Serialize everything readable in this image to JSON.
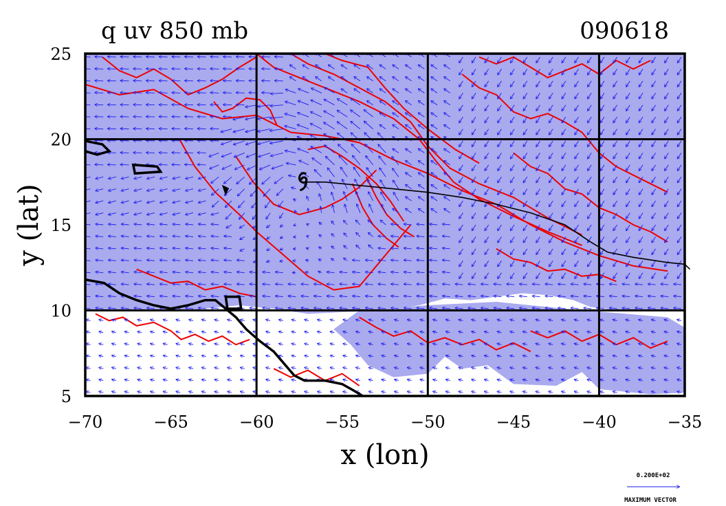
{
  "chart_data": {
    "type": "contour+vector",
    "title_left": "q uv 850 mb",
    "title_right": "090618",
    "xlabel": "x (lon)",
    "ylabel": "y (lat)",
    "xlim": [
      -70,
      -35
    ],
    "ylim": [
      5,
      25
    ],
    "xticks": [
      -70,
      -65,
      -60,
      -55,
      -50,
      -45,
      -40,
      -35
    ],
    "yticks": [
      5,
      10,
      15,
      20,
      25
    ],
    "xtick_labels": [
      "−70",
      "−65",
      "−60",
      "−55",
      "−50",
      "−45",
      "−40",
      "−35"
    ],
    "ytick_labels": [
      "5",
      "10",
      "15",
      "20",
      "25"
    ],
    "grid_x": [
      -60,
      -50,
      -40
    ],
    "grid_y": [
      10,
      20
    ],
    "colors": {
      "shade": "#aaaaee",
      "contour": "#ee0000",
      "vector": "#1a1aee",
      "coast": "#000000"
    },
    "shaded_regions": [
      {
        "name": "north-east-moist-band",
        "points": [
          [
            -70,
            25
          ],
          [
            -35,
            25
          ],
          [
            -35,
            10
          ],
          [
            -39,
            10
          ],
          [
            -40.5,
            10.2
          ],
          [
            -41.5,
            10.6
          ],
          [
            -43,
            10.9
          ],
          [
            -44.5,
            11.0
          ],
          [
            -46,
            10.8
          ],
          [
            -47.5,
            10.6
          ],
          [
            -49,
            10.7
          ],
          [
            -50,
            11.2
          ],
          [
            -51,
            11.7
          ],
          [
            -52,
            12.3
          ],
          [
            -53,
            13.2
          ],
          [
            -54,
            14.2
          ],
          [
            -55,
            15.3
          ],
          [
            -56,
            16.0
          ],
          [
            -57,
            16.3
          ],
          [
            -58,
            16.1
          ],
          [
            -59,
            15.7
          ],
          [
            -60,
            15.6
          ],
          [
            -61,
            16.4
          ],
          [
            -62.5,
            17.8
          ],
          [
            -63.3,
            19.2
          ],
          [
            -63.5,
            20.2
          ],
          [
            -64,
            20.6
          ],
          [
            -66,
            20.5
          ],
          [
            -70,
            20.4
          ]
        ]
      },
      {
        "name": "west-moist-band",
        "points": [
          [
            -70,
            20.4
          ],
          [
            -66,
            20.5
          ],
          [
            -64,
            20.6
          ],
          [
            -63.5,
            20.2
          ],
          [
            -63.3,
            19.2
          ],
          [
            -62.5,
            17.8
          ],
          [
            -61,
            16.4
          ],
          [
            -60,
            15.6
          ],
          [
            -59,
            15.7
          ],
          [
            -58,
            16.1
          ],
          [
            -57,
            16.3
          ],
          [
            -56,
            16.0
          ],
          [
            -55,
            15.3
          ],
          [
            -54,
            14.2
          ],
          [
            -53,
            13.2
          ],
          [
            -52,
            12.3
          ],
          [
            -51,
            11.7
          ],
          [
            -50,
            11.2
          ],
          [
            -49,
            10.7
          ],
          [
            -50.5,
            10.3
          ],
          [
            -52.5,
            10.0
          ],
          [
            -55,
            9.9
          ],
          [
            -57,
            9.8
          ],
          [
            -59,
            10.1
          ],
          [
            -61,
            10.3
          ],
          [
            -64,
            10.0
          ],
          [
            -67,
            10.0
          ],
          [
            -70,
            10.0
          ]
        ]
      },
      {
        "name": "south-east-moist-patch",
        "points": [
          [
            -54,
            10
          ],
          [
            -50,
            10.3
          ],
          [
            -46,
            10.5
          ],
          [
            -42,
            10.1
          ],
          [
            -36,
            9.6
          ],
          [
            -35,
            9.0
          ],
          [
            -35,
            5.2
          ],
          [
            -37,
            5.1
          ],
          [
            -40,
            5.4
          ],
          [
            -41,
            6.4
          ],
          [
            -42.5,
            5.6
          ],
          [
            -45,
            5.7
          ],
          [
            -46.5,
            6.8
          ],
          [
            -48,
            6.6
          ],
          [
            -49,
            7.3
          ],
          [
            -50,
            6.3
          ],
          [
            -52,
            6.1
          ],
          [
            -53.5,
            6.8
          ],
          [
            -54.5,
            8.0
          ],
          [
            -55.5,
            8.9
          ]
        ]
      }
    ],
    "contour_lines": [
      [
        [
          -69,
          24.8
        ],
        [
          -68,
          24.0
        ],
        [
          -67,
          23.6
        ],
        [
          -66,
          24.1
        ],
        [
          -65,
          23.5
        ],
        [
          -64,
          22.6
        ],
        [
          -63,
          23.0
        ],
        [
          -62,
          23.5
        ],
        [
          -61,
          24.2
        ],
        [
          -60,
          24.8
        ]
      ],
      [
        [
          -70,
          23.2
        ],
        [
          -68,
          22.6
        ],
        [
          -66,
          22.9
        ],
        [
          -64,
          21.8
        ],
        [
          -62,
          21.2
        ],
        [
          -60,
          21.4
        ],
        [
          -58,
          20.4
        ],
        [
          -56,
          20.2
        ],
        [
          -54,
          19.8
        ],
        [
          -52,
          18.8
        ],
        [
          -50,
          18.0
        ],
        [
          -48,
          17.0
        ],
        [
          -46,
          16.2
        ],
        [
          -44,
          15.0
        ],
        [
          -42,
          14.0
        ],
        [
          -40,
          13.2
        ],
        [
          -38,
          12.6
        ],
        [
          -36,
          12.3
        ]
      ],
      [
        [
          -60,
          25
        ],
        [
          -59,
          24.2
        ],
        [
          -57.5,
          23.6
        ],
        [
          -56,
          23.0
        ],
        [
          -54,
          22.2
        ],
        [
          -52,
          21.2
        ],
        [
          -50.5,
          20.0
        ],
        [
          -49.5,
          18.7
        ],
        [
          -48.5,
          17.5
        ],
        [
          -47,
          16.5
        ],
        [
          -45,
          15.5
        ],
        [
          -43,
          14.6
        ],
        [
          -41,
          13.8
        ]
      ],
      [
        [
          -58,
          25
        ],
        [
          -57,
          24.4
        ],
        [
          -55.5,
          23.8
        ],
        [
          -54,
          23.0
        ],
        [
          -52.5,
          22.2
        ],
        [
          -51,
          21.0
        ],
        [
          -50,
          19.6
        ],
        [
          -48.7,
          18.3
        ],
        [
          -47,
          17.4
        ],
        [
          -45,
          16.6
        ],
        [
          -43,
          15.4
        ],
        [
          -41,
          14.4
        ]
      ],
      [
        [
          -56,
          25
        ],
        [
          -55,
          24.6
        ],
        [
          -53.5,
          24.2
        ],
        [
          -52.5,
          23.0
        ],
        [
          -51.4,
          21.8
        ],
        [
          -50,
          20.6
        ],
        [
          -48.4,
          19.4
        ],
        [
          -47,
          18.6
        ]
      ],
      [
        [
          -64.5,
          20.0
        ],
        [
          -63.6,
          18.4
        ],
        [
          -62.4,
          16.9
        ],
        [
          -61,
          15.6
        ],
        [
          -60,
          14.6
        ],
        [
          -58.5,
          13.3
        ],
        [
          -57,
          12.0
        ],
        [
          -55.5,
          11.2
        ],
        [
          -54,
          11.4
        ],
        [
          -53,
          12.6
        ],
        [
          -52,
          13.8
        ],
        [
          -51,
          15.0
        ]
      ],
      [
        [
          -61.2,
          19.0
        ],
        [
          -60.2,
          17.5
        ],
        [
          -59,
          16.2
        ],
        [
          -57.5,
          15.6
        ],
        [
          -56,
          16.0
        ],
        [
          -55,
          16.5
        ],
        [
          -54,
          17.2
        ],
        [
          -53,
          18.2
        ]
      ],
      [
        [
          -57,
          19.4
        ],
        [
          -56,
          19.6
        ],
        [
          -55,
          19.0
        ],
        [
          -54,
          18.3
        ],
        [
          -53,
          17.4
        ],
        [
          -52.2,
          16.4
        ],
        [
          -51.4,
          15.2
        ]
      ],
      [
        [
          -53.6,
          17.8
        ],
        [
          -53.0,
          16.6
        ],
        [
          -52.4,
          15.6
        ],
        [
          -51.6,
          14.8
        ],
        [
          -50.8,
          14.3
        ]
      ],
      [
        [
          -54.4,
          17.4
        ],
        [
          -53.8,
          16.0
        ],
        [
          -53.2,
          15.0
        ],
        [
          -52.4,
          14.2
        ],
        [
          -51.7,
          13.7
        ]
      ],
      [
        [
          -62.5,
          22.2
        ],
        [
          -62,
          21.6
        ],
        [
          -61.4,
          21.8
        ],
        [
          -60.6,
          22.4
        ],
        [
          -59.8,
          22.3
        ],
        [
          -59.2,
          21.7
        ],
        [
          -58.8,
          20.8
        ]
      ],
      [
        [
          -47,
          24.8
        ],
        [
          -46,
          24.4
        ],
        [
          -45,
          24.8
        ],
        [
          -44,
          24.2
        ],
        [
          -43,
          23.6
        ],
        [
          -42,
          24.0
        ],
        [
          -41,
          24.4
        ],
        [
          -40,
          23.8
        ],
        [
          -39,
          24.6
        ],
        [
          -38,
          24.1
        ],
        [
          -37,
          24.6
        ]
      ],
      [
        [
          -48,
          23.8
        ],
        [
          -47,
          23.0
        ],
        [
          -46,
          22.6
        ],
        [
          -45,
          21.6
        ],
        [
          -44,
          21.2
        ],
        [
          -43,
          21.5
        ],
        [
          -42,
          21.0
        ],
        [
          -41,
          20.4
        ],
        [
          -40,
          19.2
        ],
        [
          -39,
          18.4
        ],
        [
          -38,
          17.9
        ],
        [
          -37,
          17.4
        ],
        [
          -36,
          16.9
        ]
      ],
      [
        [
          -45,
          19.2
        ],
        [
          -44,
          18.4
        ],
        [
          -43,
          18.0
        ],
        [
          -42,
          17.1
        ],
        [
          -41,
          16.8
        ],
        [
          -40,
          16.0
        ],
        [
          -39,
          15.6
        ],
        [
          -38,
          15.0
        ],
        [
          -37,
          14.6
        ],
        [
          -36,
          14.0
        ]
      ],
      [
        [
          -46,
          13.6
        ],
        [
          -45,
          13.0
        ],
        [
          -44,
          12.8
        ],
        [
          -43,
          12.3
        ],
        [
          -42,
          12.4
        ],
        [
          -41,
          12.0
        ],
        [
          -40,
          12.1
        ],
        [
          -39,
          11.7
        ]
      ],
      [
        [
          -67,
          12.4
        ],
        [
          -66,
          12.0
        ],
        [
          -65,
          11.6
        ],
        [
          -64,
          11.7
        ],
        [
          -63,
          11.2
        ],
        [
          -62,
          11.4
        ],
        [
          -61,
          11.0
        ],
        [
          -60,
          10.8
        ]
      ],
      [
        [
          -69.4,
          9.8
        ],
        [
          -68.6,
          9.4
        ],
        [
          -67.8,
          9.6
        ],
        [
          -67,
          9.1
        ],
        [
          -66,
          9.3
        ],
        [
          -65,
          8.8
        ],
        [
          -64.4,
          8.3
        ],
        [
          -63.6,
          8.6
        ],
        [
          -62.8,
          8.2
        ],
        [
          -62,
          8.5
        ],
        [
          -61.2,
          8.0
        ],
        [
          -60.4,
          8.3
        ]
      ],
      [
        [
          -54,
          9.6
        ],
        [
          -53,
          9.0
        ],
        [
          -52,
          8.5
        ],
        [
          -51,
          8.8
        ],
        [
          -50,
          8.1
        ],
        [
          -49,
          8.4
        ],
        [
          -48,
          8.0
        ],
        [
          -47,
          8.3
        ],
        [
          -46,
          7.7
        ],
        [
          -45,
          8.1
        ],
        [
          -44,
          7.6
        ]
      ],
      [
        [
          -44,
          8.8
        ],
        [
          -43,
          8.4
        ],
        [
          -42,
          8.8
        ],
        [
          -41,
          8.2
        ],
        [
          -40,
          8.6
        ],
        [
          -39,
          8.0
        ],
        [
          -38,
          8.4
        ],
        [
          -37,
          7.8
        ],
        [
          -36,
          8.2
        ]
      ],
      [
        [
          -59,
          6.6
        ],
        [
          -58,
          6.1
        ],
        [
          -57,
          6.5
        ],
        [
          -56,
          5.9
        ],
        [
          -55,
          6.3
        ],
        [
          -54,
          5.6
        ]
      ]
    ],
    "coastline": [
      [
        [
          -70,
          11.8
        ],
        [
          -68.9,
          11.6
        ],
        [
          -68,
          11.0
        ],
        [
          -67,
          10.6
        ],
        [
          -66,
          10.3
        ],
        [
          -65,
          10.1
        ],
        [
          -64,
          10.3
        ],
        [
          -63,
          10.6
        ],
        [
          -62.4,
          10.6
        ],
        [
          -61.8,
          10.1
        ],
        [
          -61.2,
          9.6
        ],
        [
          -60.6,
          8.9
        ],
        [
          -59.8,
          8.2
        ],
        [
          -59,
          7.6
        ],
        [
          -58.4,
          6.9
        ],
        [
          -57.8,
          6.2
        ],
        [
          -57.2,
          5.9
        ],
        [
          -56,
          5.9
        ],
        [
          -55,
          5.7
        ],
        [
          -54.3,
          5.3
        ],
        [
          -53.8,
          5.0
        ]
      ]
    ],
    "islands": [
      [
        [
          -70,
          19.9
        ],
        [
          -69,
          19.7
        ],
        [
          -68.6,
          19.3
        ],
        [
          -69.3,
          19.1
        ],
        [
          -70,
          19.3
        ]
      ],
      [
        [
          -67.2,
          18.5
        ],
        [
          -65.8,
          18.4
        ],
        [
          -65.6,
          18.1
        ],
        [
          -67.1,
          18.0
        ]
      ],
      [
        [
          -61.8,
          10.8
        ],
        [
          -61.0,
          10.8
        ],
        [
          -60.9,
          10.1
        ],
        [
          -61.7,
          10.1
        ]
      ],
      [
        [
          -61.9,
          17.2
        ],
        [
          -61.7,
          17.1
        ],
        [
          -61.8,
          16.9
        ]
      ]
    ],
    "storm_track": [
      [
        -57.2,
        17.5
      ],
      [
        -56,
        17.5
      ],
      [
        -54,
        17.3
      ],
      [
        -52,
        17.1
      ],
      [
        -50,
        16.9
      ],
      [
        -48,
        16.6
      ],
      [
        -46,
        16.2
      ],
      [
        -44,
        15.7
      ],
      [
        -42,
        15.0
      ],
      [
        -40.5,
        14.0
      ],
      [
        -39.5,
        13.4
      ],
      [
        -38,
        13.1
      ],
      [
        -36,
        12.8
      ],
      [
        -35,
        12.7
      ],
      [
        -34.7,
        12.4
      ]
    ],
    "storm_symbol": {
      "lon": -57.3,
      "lat": 17.5
    },
    "vector_grid": {
      "dlon": 0.75,
      "dlat": 0.7
    },
    "reference_vector": {
      "value_label": "0.200E+02",
      "caption": "MAXIMUM VECTOR"
    }
  }
}
